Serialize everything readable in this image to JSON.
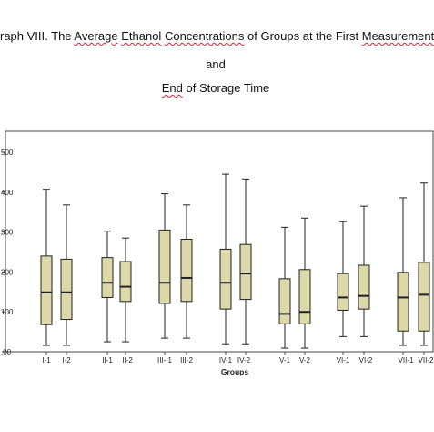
{
  "title": {
    "line1_parts": [
      {
        "text": "raph VIII. The ",
        "squiggle": false
      },
      {
        "text": "Average",
        "squiggle": true
      },
      {
        "text": " ",
        "squiggle": false
      },
      {
        "text": "Ethanol",
        "squiggle": true
      },
      {
        "text": " ",
        "squiggle": false
      },
      {
        "text": "Concentrations",
        "squiggle": true
      },
      {
        "text": " of Groups at the First ",
        "squiggle": false
      },
      {
        "text": "Measurement",
        "squiggle": true
      }
    ],
    "line2": "and",
    "line3_parts": [
      {
        "text": "End",
        "squiggle": true
      },
      {
        "text": " of Storage Time",
        "squiggle": false
      }
    ]
  },
  "colors": {
    "box_fill": "#ddd8a8",
    "stroke": "#222222",
    "axis": "#444444",
    "text": "#222222"
  },
  "chart_data": {
    "type": "box",
    "xlabel": "Groups",
    "ylabel": "",
    "y_tick_values": [
      0,
      100,
      200,
      300,
      400,
      500
    ],
    "y_tick_labels": [
      ",00",
      "100",
      "200",
      "300",
      "400",
      "500"
    ],
    "ylim": [
      0,
      560
    ],
    "categories": [
      "I-1",
      "I-2",
      "II-1",
      "II-2",
      "III-1",
      "III-2",
      "IV-1",
      "IV-2",
      "V-1",
      "V-2",
      "VI-1",
      "VI-2",
      "VII-1",
      "VII-2"
    ],
    "category_labels": [
      "I-1",
      "I-2",
      "II-1",
      "II-2",
      "III- 1",
      "III-2",
      "IV-1",
      "IV-2",
      "V-1",
      "V-2",
      "VI-1",
      "VI-2",
      "VII-1",
      "VII-2"
    ],
    "groups": [
      {
        "whisker_low": 16,
        "q1": 68,
        "median": 149,
        "q3": 240,
        "whisker_high": 407
      },
      {
        "whisker_low": 16,
        "q1": 81,
        "median": 149,
        "q3": 232,
        "whisker_high": 368
      },
      {
        "whisker_low": 25,
        "q1": 136,
        "median": 173,
        "q3": 236,
        "whisker_high": 302
      },
      {
        "whisker_low": 25,
        "q1": 126,
        "median": 163,
        "q3": 226,
        "whisker_high": 285
      },
      {
        "whisker_low": 34,
        "q1": 121,
        "median": 173,
        "q3": 305,
        "whisker_high": 396
      },
      {
        "whisker_low": 34,
        "q1": 126,
        "median": 185,
        "q3": 282,
        "whisker_high": 368
      },
      {
        "whisker_low": 20,
        "q1": 107,
        "median": 173,
        "q3": 257,
        "whisker_high": 445
      },
      {
        "whisker_low": 20,
        "q1": 131,
        "median": 196,
        "q3": 269,
        "whisker_high": 433
      },
      {
        "whisker_low": 9,
        "q1": 70,
        "median": 95,
        "q3": 183,
        "whisker_high": 312
      },
      {
        "whisker_low": 9,
        "q1": 70,
        "median": 100,
        "q3": 206,
        "whisker_high": 335
      },
      {
        "whisker_low": 38,
        "q1": 104,
        "median": 136,
        "q3": 196,
        "whisker_high": 326
      },
      {
        "whisker_low": 38,
        "q1": 107,
        "median": 140,
        "q3": 217,
        "whisker_high": 365
      },
      {
        "whisker_low": 16,
        "q1": 52,
        "median": 136,
        "q3": 199,
        "whisker_high": 386
      },
      {
        "whisker_low": 16,
        "q1": 52,
        "median": 143,
        "q3": 224,
        "whisker_high": 423
      }
    ]
  }
}
